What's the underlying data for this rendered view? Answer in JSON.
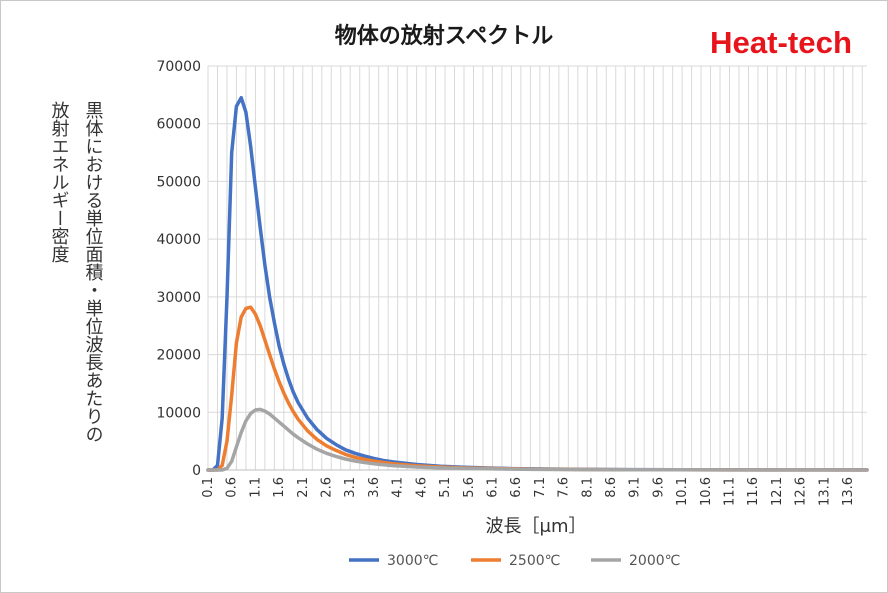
{
  "chart_data": {
    "type": "line",
    "title": "物体の放射スペクトル",
    "brand": "Heat-tech",
    "xlabel": "波長［μm］",
    "ylabel_col1": "黒体における単位面積・単位波長あたりの",
    "ylabel_col2": "放射エネルギー密度",
    "ylim": [
      0,
      70000
    ],
    "yticks": [
      "0",
      "10000",
      "20000",
      "30000",
      "40000",
      "50000",
      "60000",
      "70000"
    ],
    "xticks": [
      "0.1",
      "0.6",
      "1.1",
      "1.6",
      "2.1",
      "2.6",
      "3.1",
      "3.6",
      "4.1",
      "4.6",
      "5.1",
      "5.6",
      "6.1",
      "6.6",
      "7.1",
      "7.6",
      "8.1",
      "8.6",
      "9.1",
      "9.6",
      "10.1",
      "10.6",
      "11.1",
      "11.6",
      "12.1",
      "12.6",
      "13.1",
      "13.6"
    ],
    "grid": true,
    "legend_position": "bottom",
    "x": [
      0.1,
      0.2,
      0.3,
      0.4,
      0.5,
      0.6,
      0.7,
      0.8,
      0.9,
      1.0,
      1.1,
      1.2,
      1.3,
      1.4,
      1.5,
      1.6,
      1.7,
      1.8,
      1.9,
      2.0,
      2.2,
      2.4,
      2.6,
      2.8,
      3.0,
      3.2,
      3.4,
      3.6,
      3.8,
      4.0,
      4.5,
      5.0,
      5.5,
      6.0,
      6.5,
      7.0,
      8.0,
      9.0,
      10.0,
      11.0,
      12.0,
      13.0,
      14.0
    ],
    "series": [
      {
        "name": "3000℃",
        "color": "#4472c4",
        "values": [
          0,
          0,
          800,
          9000,
          30000,
          55000,
          63000,
          64500,
          62000,
          56000,
          49000,
          42000,
          35500,
          30000,
          25500,
          21500,
          18300,
          15700,
          13500,
          11700,
          9000,
          7000,
          5500,
          4400,
          3500,
          2900,
          2400,
          2000,
          1650,
          1400,
          950,
          650,
          470,
          340,
          250,
          190,
          110,
          70,
          45,
          30,
          20,
          14,
          10
        ]
      },
      {
        "name": "2500℃",
        "color": "#ed7d31",
        "values": [
          0,
          0,
          0,
          800,
          5000,
          13000,
          22000,
          26500,
          28000,
          28200,
          27000,
          25000,
          22500,
          20000,
          17500,
          15300,
          13300,
          11600,
          10100,
          8800,
          6800,
          5300,
          4200,
          3400,
          2700,
          2200,
          1850,
          1550,
          1300,
          1100,
          750,
          520,
          370,
          270,
          200,
          150,
          90,
          55,
          35,
          24,
          16,
          11,
          8
        ]
      },
      {
        "name": "2000℃",
        "color": "#a5a5a5",
        "values": [
          0,
          0,
          0,
          0,
          300,
          1500,
          4000,
          6500,
          8500,
          9800,
          10400,
          10500,
          10200,
          9700,
          9000,
          8300,
          7600,
          6900,
          6200,
          5600,
          4500,
          3600,
          2900,
          2350,
          1900,
          1560,
          1300,
          1080,
          900,
          760,
          520,
          370,
          270,
          200,
          150,
          110,
          65,
          40,
          26,
          18,
          12,
          9,
          6
        ]
      }
    ]
  }
}
